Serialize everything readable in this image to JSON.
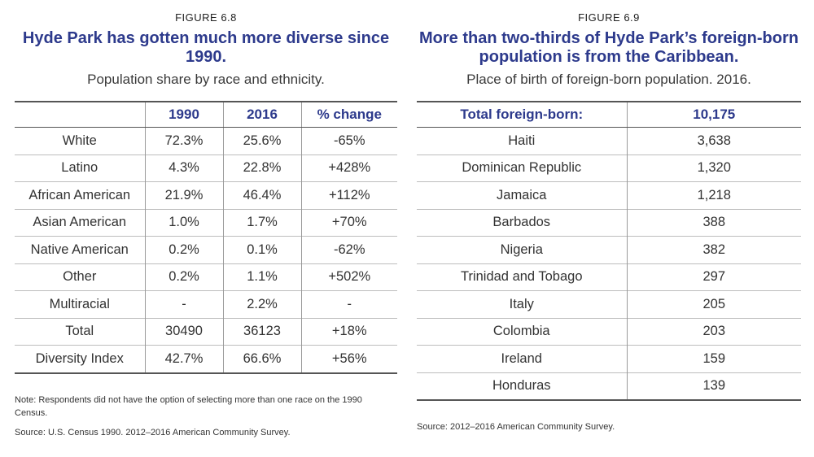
{
  "fig68": {
    "label": "FIGURE 6.8",
    "title": "Hyde Park has gotten much more diverse since 1990.",
    "subtitle": "Population share by race and ethnicity.",
    "headers": [
      "",
      "1990",
      "2016",
      "% change"
    ],
    "rows": [
      [
        "White",
        "72.3%",
        "25.6%",
        "-65%"
      ],
      [
        "Latino",
        "4.3%",
        "22.8%",
        "+428%"
      ],
      [
        "African American",
        "21.9%",
        "46.4%",
        "+112%"
      ],
      [
        "Asian American",
        "1.0%",
        "1.7%",
        "+70%"
      ],
      [
        "Native American",
        "0.2%",
        "0.1%",
        "-62%"
      ],
      [
        "Other",
        "0.2%",
        "1.1%",
        "+502%"
      ],
      [
        "Multiracial",
        "-",
        "2.2%",
        "-"
      ],
      [
        "Total",
        "30490",
        "36123",
        "+18%"
      ],
      [
        "Diversity Index",
        "42.7%",
        "66.6%",
        "+56%"
      ]
    ],
    "note": "Note: Respondents did not have the option of selecting more than one race on the 1990 Census.",
    "source": "Source: U.S. Census 1990. 2012–2016 American Community Survey."
  },
  "fig69": {
    "label": "FIGURE 6.9",
    "title": "More than two-thirds of Hyde Park’s foreign-born population is from the Caribbean.",
    "subtitle": "Place of birth of foreign-born population. 2016.",
    "headers": [
      "Total foreign-born:",
      "10,175"
    ],
    "rows": [
      [
        "Haiti",
        "3,638"
      ],
      [
        "Dominican Republic",
        "1,320"
      ],
      [
        "Jamaica",
        "1,218"
      ],
      [
        "Barbados",
        "388"
      ],
      [
        "Nigeria",
        "382"
      ],
      [
        "Trinidad and Tobago",
        "297"
      ],
      [
        "Italy",
        "205"
      ],
      [
        "Colombia",
        "203"
      ],
      [
        "Ireland",
        "159"
      ],
      [
        "Honduras",
        "139"
      ]
    ],
    "source": "Source: 2012–2016 American Community Survey."
  }
}
